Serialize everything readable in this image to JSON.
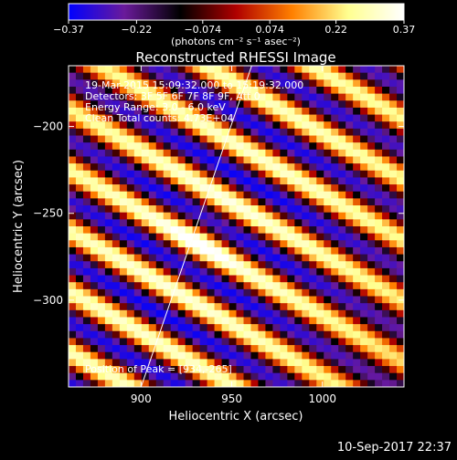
{
  "chart_data": {
    "type": "heatmap",
    "title": "Reconstructed RHESSI Image",
    "xlabel": "Heliocentric X (arcsec)",
    "ylabel": "Heliocentric Y (arcsec)",
    "xlim": [
      860,
      1045
    ],
    "ylim": [
      -350,
      -165
    ],
    "x_ticks": [
      900,
      950,
      1000
    ],
    "x_tick_labels": [
      "900",
      "950",
      "1000"
    ],
    "y_ticks": [
      -200,
      -250,
      -300
    ],
    "y_tick_labels": [
      "−200",
      "−250",
      "−300"
    ],
    "colorbar": {
      "range": [
        -0.37,
        0.37
      ],
      "ticks": [
        -0.37,
        -0.22,
        -0.074,
        0.074,
        0.22,
        0.37
      ],
      "tick_labels": [
        "−0.37",
        "−0.22",
        "−0.074",
        "0.074",
        "0.22",
        "0.37"
      ],
      "units": "(photons cm⁻² s⁻¹ asec⁻²)",
      "colormap": [
        "#0000ff",
        "#6a1a9a",
        "#000000",
        "#b00000",
        "#ff8000",
        "#ffff90",
        "#ffffff"
      ]
    },
    "annotations": [
      "19-Mar-2015 15:09:32.000 to 15:19:32.000",
      "Detectors: 3F 5F 6F 7F 8F 9F, Att 0",
      "Energy Range: 3.0 - 6.0 keV",
      "Clean     Total counts: 4.73E+04"
    ],
    "peak": {
      "label": "Position of Peak = [934,-265]",
      "x": 934,
      "y": -265
    },
    "limb_line": [
      [
        900,
        -350
      ],
      [
        961,
        -165
      ]
    ],
    "fringes": {
      "direction_deg": -31,
      "spacing_arcsec": 30,
      "center": [
        932,
        -268
      ]
    }
  },
  "footer": {
    "timestamp": "10-Sep-2017 22:37"
  }
}
